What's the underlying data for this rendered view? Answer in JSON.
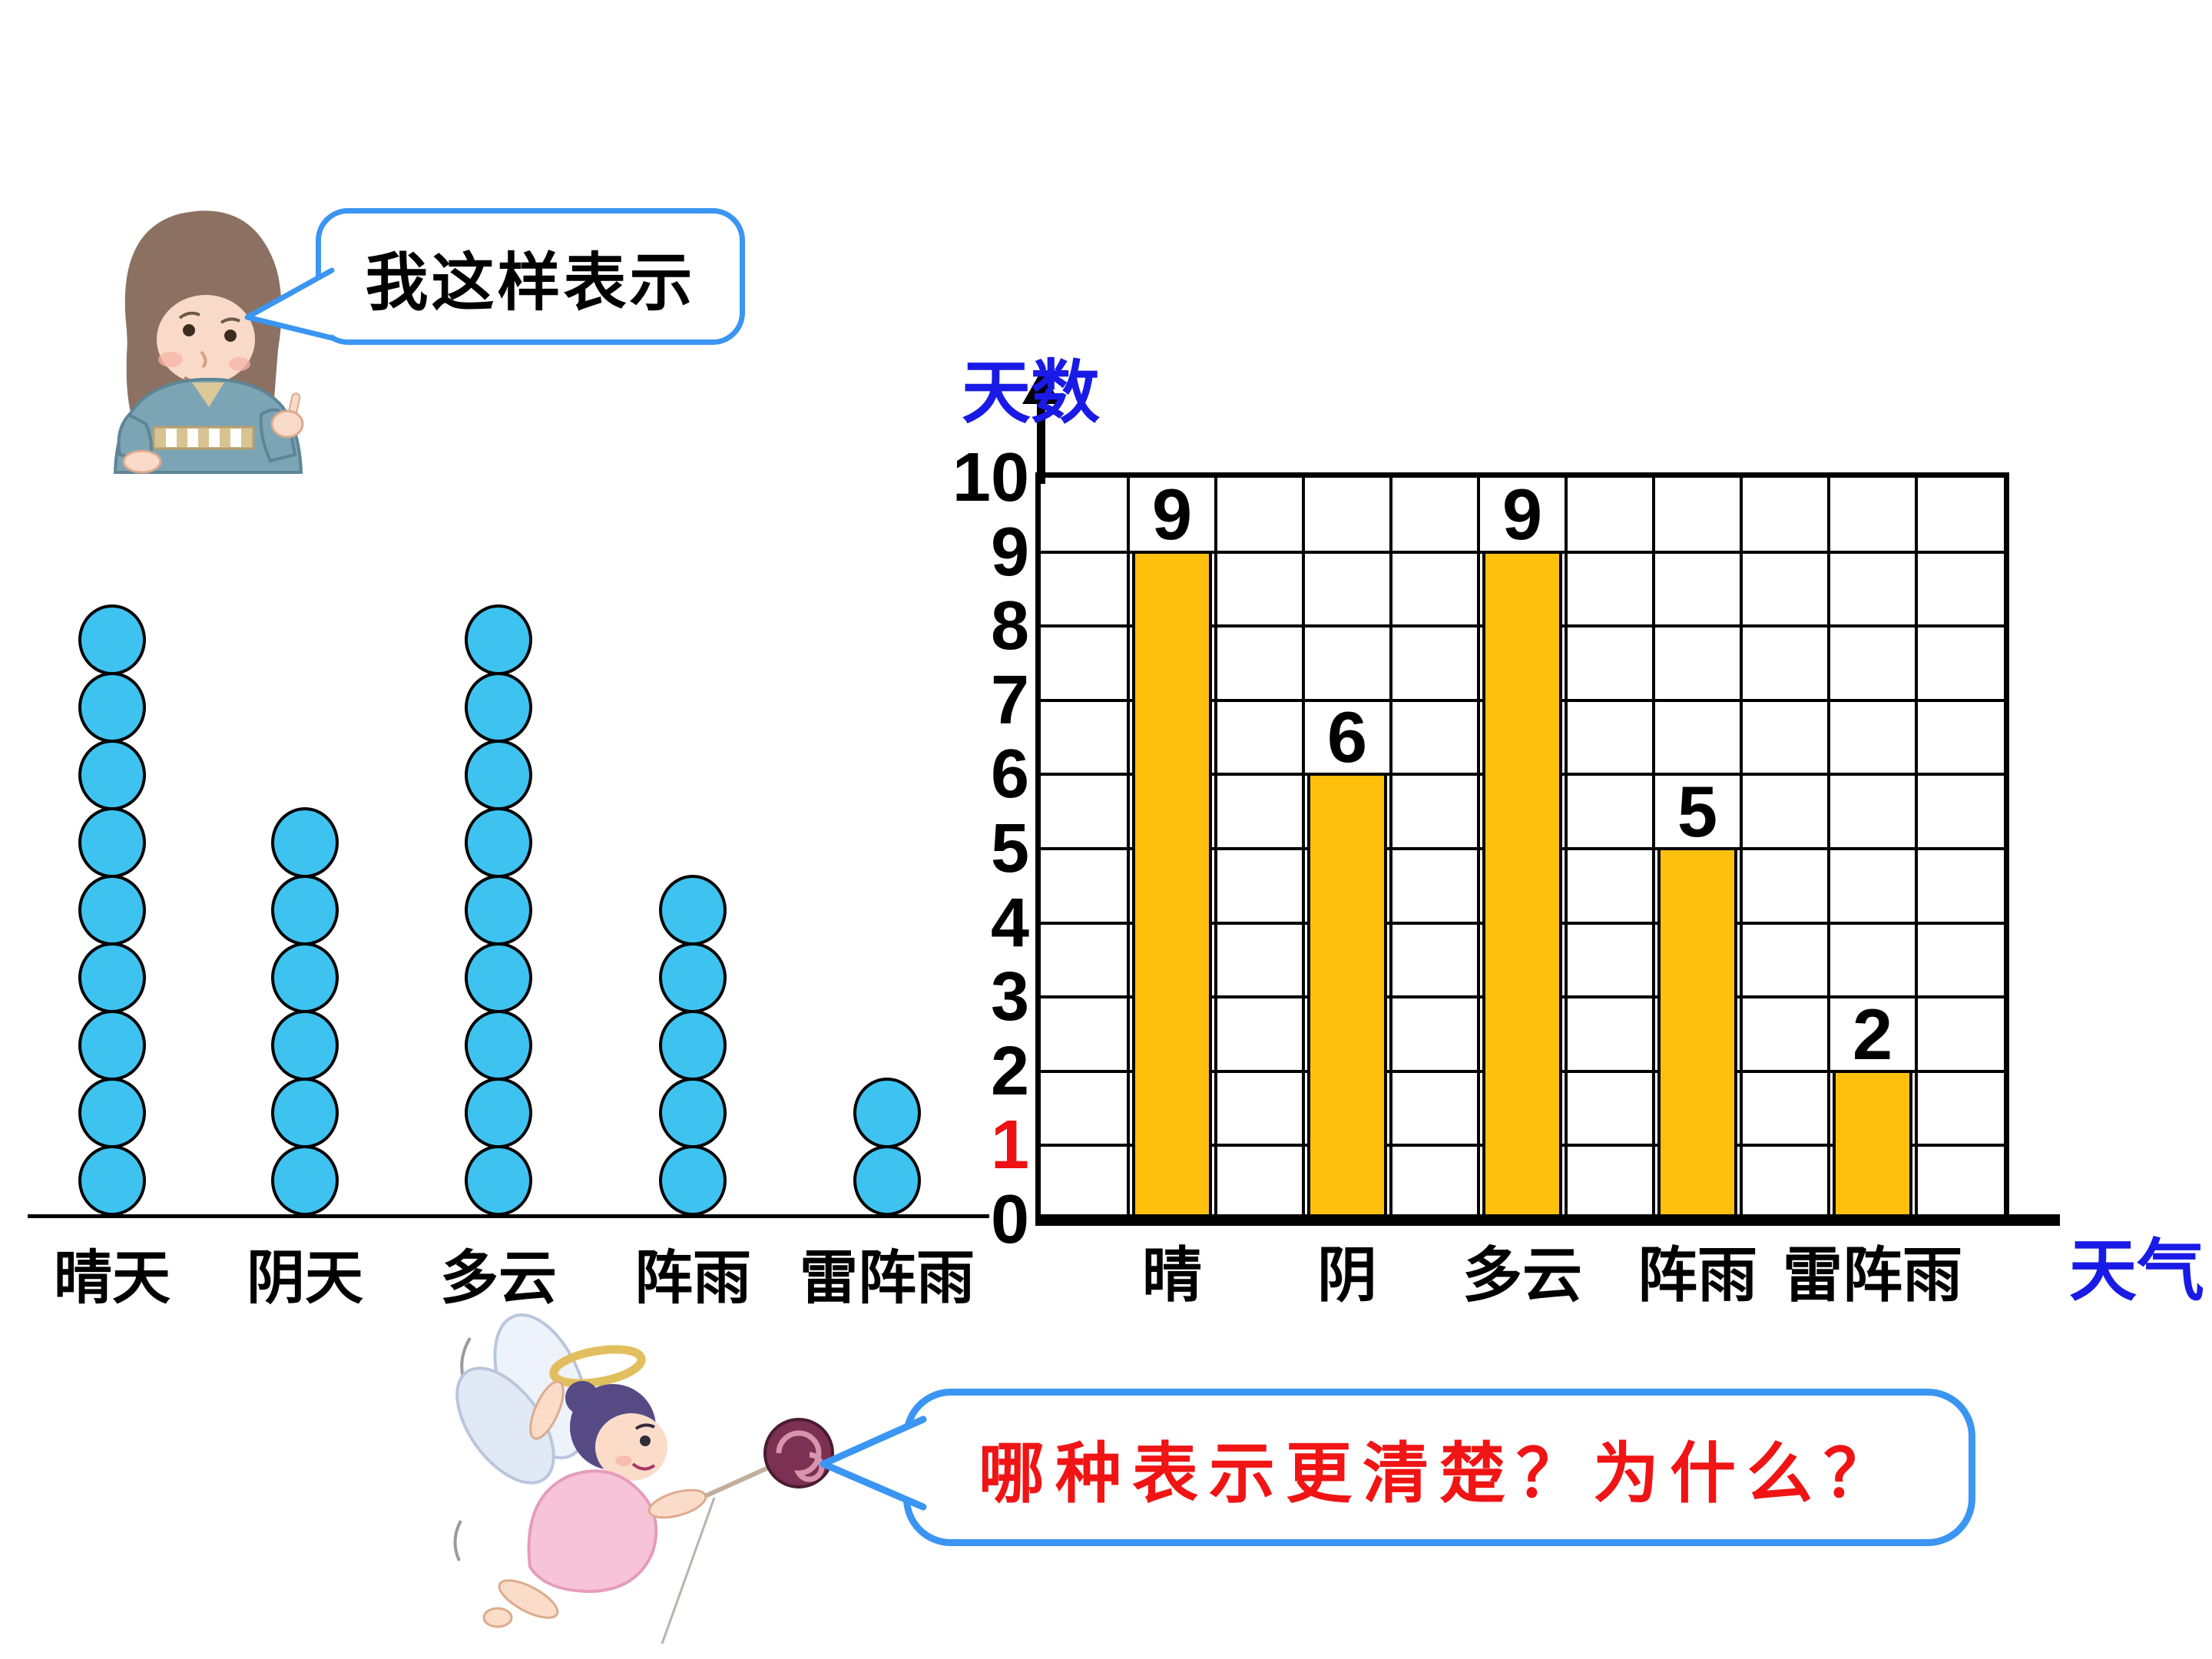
{
  "speech_bubbles": {
    "girl": {
      "text": "我这样表示",
      "border_color": "#3b95f2",
      "text_color": "#000000"
    },
    "fairy": {
      "text": "哪种表示更清楚？为什么？",
      "border_color": "#3b95f2",
      "text_color": "#f01414"
    }
  },
  "chart_data": [
    {
      "type": "pictograph",
      "categories": [
        "晴天",
        "阴天",
        "多云",
        "阵雨",
        "雷阵雨"
      ],
      "values": [
        9,
        6,
        9,
        5,
        2
      ],
      "symbol": "circle",
      "symbol_color": "#3ec3f1",
      "symbol_outline": "#000000",
      "baseline": true
    },
    {
      "type": "bar",
      "categories": [
        "晴",
        "阴",
        "多云",
        "阵雨",
        "雷阵雨"
      ],
      "values": [
        9,
        6,
        9,
        5,
        2
      ],
      "bar_labels": [
        "9",
        "6",
        "9",
        "5",
        "2"
      ],
      "ylabel": "天数",
      "xlabel": "天气",
      "ylim": [
        0,
        10
      ],
      "yticks": [
        "10",
        "9",
        "8",
        "7",
        "6",
        "5",
        "4",
        "3",
        "2",
        "1",
        "0"
      ],
      "red_tick": "1",
      "red_tick_color": "#ee1111",
      "bar_color": "#fec00d",
      "axis_title_color": "#1a1ae6",
      "grid": true,
      "legend_position": "none"
    }
  ]
}
